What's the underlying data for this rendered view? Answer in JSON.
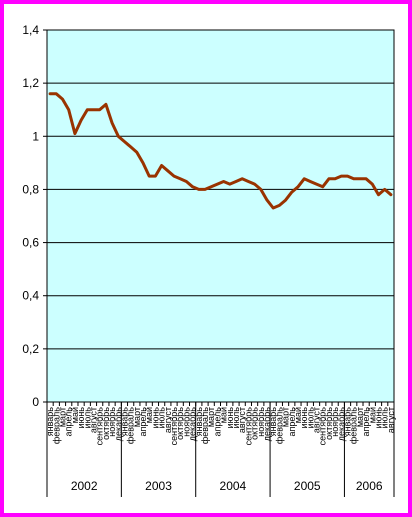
{
  "chart_data": {
    "type": "line",
    "title": "",
    "xlabel": "",
    "ylabel": "",
    "ylim": [
      0,
      1.4
    ],
    "yticks": [
      0,
      0.2,
      0.4,
      0.6,
      0.8,
      1,
      1.2,
      1.4
    ],
    "ytick_labels": [
      "0",
      "0,2",
      "0,4",
      "0,6",
      "0,8",
      "1",
      "1,2",
      "1,4"
    ],
    "grid": "horizontal",
    "legend": "none",
    "plot_background": "#ccffff",
    "line_color": "#993300",
    "frame_color": "#ff00ff",
    "years": [
      {
        "label": "2002",
        "months": 12
      },
      {
        "label": "2003",
        "months": 12
      },
      {
        "label": "2004",
        "months": 12
      },
      {
        "label": "2005",
        "months": 12
      },
      {
        "label": "2006",
        "months": 8
      }
    ],
    "month_names": [
      "январь",
      "февраль",
      "март",
      "апрель",
      "май",
      "июнь",
      "июль",
      "август",
      "сентябрь",
      "октябрь",
      "ноябрь",
      "декабрь"
    ],
    "values": [
      1.16,
      1.16,
      1.14,
      1.1,
      1.01,
      1.06,
      1.1,
      1.1,
      1.1,
      1.12,
      1.05,
      1.0,
      0.98,
      0.96,
      0.94,
      0.9,
      0.85,
      0.85,
      0.89,
      0.87,
      0.85,
      0.84,
      0.83,
      0.81,
      0.8,
      0.8,
      0.81,
      0.82,
      0.83,
      0.82,
      0.83,
      0.84,
      0.83,
      0.82,
      0.8,
      0.76,
      0.73,
      0.74,
      0.76,
      0.79,
      0.81,
      0.84,
      0.83,
      0.82,
      0.81,
      0.84,
      0.84,
      0.85,
      0.85,
      0.84,
      0.84,
      0.84,
      0.82,
      0.78,
      0.8,
      0.78
    ]
  }
}
